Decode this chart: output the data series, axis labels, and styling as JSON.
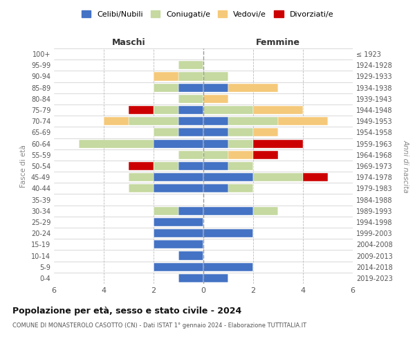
{
  "age_groups": [
    "0-4",
    "5-9",
    "10-14",
    "15-19",
    "20-24",
    "25-29",
    "30-34",
    "35-39",
    "40-44",
    "45-49",
    "50-54",
    "55-59",
    "60-64",
    "65-69",
    "70-74",
    "75-79",
    "80-84",
    "85-89",
    "90-94",
    "95-99",
    "100+"
  ],
  "birth_years": [
    "2019-2023",
    "2014-2018",
    "2009-2013",
    "2004-2008",
    "1999-2003",
    "1994-1998",
    "1989-1993",
    "1984-1988",
    "1979-1983",
    "1974-1978",
    "1969-1973",
    "1964-1968",
    "1959-1963",
    "1954-1958",
    "1949-1953",
    "1944-1948",
    "1939-1943",
    "1934-1938",
    "1929-1933",
    "1924-1928",
    "≤ 1923"
  ],
  "colors": {
    "celibi": "#4472C4",
    "coniugati": "#C5D9A0",
    "vedovi": "#F5C97A",
    "divorziati": "#CC0000"
  },
  "maschi": {
    "celibi": [
      1,
      2,
      1,
      2,
      2,
      2,
      1,
      0,
      2,
      2,
      1,
      0,
      2,
      1,
      1,
      1,
      0,
      1,
      0,
      0,
      0
    ],
    "coniugati": [
      0,
      0,
      0,
      0,
      0,
      0,
      1,
      0,
      1,
      1,
      1,
      1,
      3,
      1,
      2,
      1,
      1,
      1,
      1,
      1,
      0
    ],
    "vedovi": [
      0,
      0,
      0,
      0,
      0,
      0,
      0,
      0,
      0,
      0,
      0,
      0,
      0,
      0,
      1,
      0,
      0,
      0,
      1,
      0,
      0
    ],
    "divorziati": [
      0,
      0,
      0,
      0,
      0,
      0,
      0,
      0,
      0,
      0,
      1,
      0,
      0,
      0,
      0,
      1,
      0,
      0,
      0,
      0,
      0
    ]
  },
  "femmine": {
    "celibi": [
      1,
      2,
      0,
      0,
      2,
      0,
      2,
      0,
      1,
      2,
      1,
      0,
      1,
      1,
      1,
      0,
      0,
      1,
      0,
      0,
      0
    ],
    "coniugati": [
      0,
      0,
      0,
      0,
      0,
      0,
      1,
      0,
      1,
      2,
      1,
      1,
      1,
      1,
      2,
      2,
      0,
      0,
      1,
      0,
      0
    ],
    "vedovi": [
      0,
      0,
      0,
      0,
      0,
      0,
      0,
      0,
      0,
      0,
      0,
      1,
      0,
      1,
      2,
      2,
      1,
      2,
      0,
      0,
      0
    ],
    "divorziati": [
      0,
      0,
      0,
      0,
      0,
      0,
      0,
      0,
      0,
      1,
      0,
      1,
      2,
      0,
      0,
      0,
      0,
      0,
      0,
      0,
      0
    ]
  },
  "xlim": 6,
  "title": "Popolazione per età, sesso e stato civile - 2024",
  "subtitle": "COMUNE DI MONASTEROLO CASOTTO (CN) - Dati ISTAT 1° gennaio 2024 - Elaborazione TUTTITALIA.IT",
  "ylabel_left": "Fasce di età",
  "ylabel_right": "Anni di nascita",
  "xlabel_left": "Maschi",
  "xlabel_right": "Femmine",
  "legend_labels": [
    "Celibi/Nubili",
    "Coniugati/e",
    "Vedovi/e",
    "Divorziati/e"
  ],
  "bg_color": "#ffffff",
  "grid_color": "#bbbbbb"
}
